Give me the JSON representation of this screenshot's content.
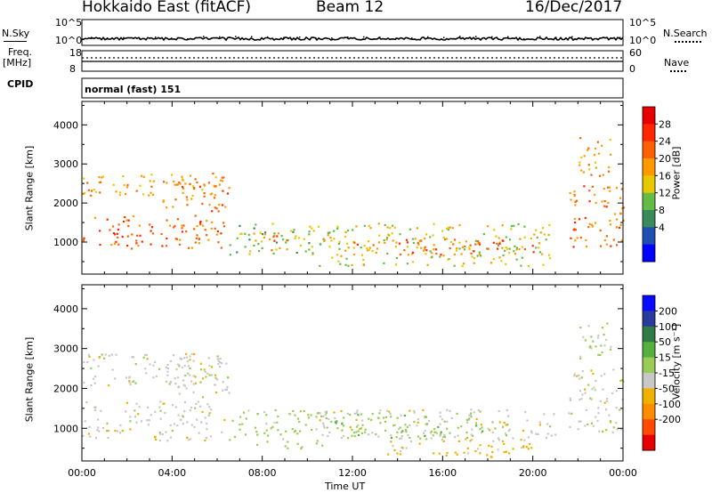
{
  "header": {
    "station": "Hokkaido East (fitACF)",
    "beam": "Beam 12",
    "date": "16/Dec/2017"
  },
  "noise_panel": {
    "left_label": "N.Sky",
    "right_label": "N.Search",
    "left_ticks": [
      "10^5",
      "10^0"
    ],
    "right_ticks": [
      "10^5",
      "10^0"
    ]
  },
  "freq_panel": {
    "left_label_1": "Freq.",
    "left_label_2": "[MHz]",
    "right_label": "Nave",
    "left_ticks": [
      "18",
      "8"
    ],
    "right_ticks": [
      "60",
      "0"
    ]
  },
  "cpid_panel": {
    "label": "CPID",
    "value": "normal (fast) 151"
  },
  "colors": {
    "power": [
      "#0000ff",
      "#1f4fb0",
      "#3b8a5c",
      "#66bb44",
      "#e8c800",
      "#ff9a00",
      "#ff6000",
      "#ff2600",
      "#e80000"
    ],
    "velocity": [
      "#e80000",
      "#ff4a00",
      "#ff8c00",
      "#f0b000",
      "#c8c8c8",
      "#99cc55",
      "#55b040",
      "#2f7a45",
      "#2a3a9c",
      "#0a0aff"
    ],
    "velocity_ground": "#c8c8c8"
  },
  "chart_data": [
    {
      "type": "heatmap",
      "name": "power",
      "ylabel": "Slant Range [km]",
      "xlabel": "",
      "colorbar_label": "Power [dB]",
      "colorbar_ticks": [
        "28",
        "24",
        "20",
        "16",
        "12",
        "8",
        "4"
      ],
      "x_ticks": [
        "00:00",
        "04:00",
        "08:00",
        "12:00",
        "16:00",
        "20:00",
        "00:00"
      ],
      "y_ticks": [
        "4000",
        "3000",
        "2000",
        "1000"
      ],
      "xlim_hours": [
        0,
        24
      ],
      "ylim_km": [
        180,
        4600
      ],
      "echo_regions": [
        {
          "t0": 0.0,
          "t1": 6.3,
          "r0": 850,
          "r1": 1700,
          "level": 26
        },
        {
          "t0": 0.0,
          "t1": 6.3,
          "r0": 2200,
          "r1": 2800,
          "level": 22
        },
        {
          "t0": 3.5,
          "t1": 6.5,
          "r0": 1800,
          "r1": 2600,
          "level": 25
        },
        {
          "t0": 6.5,
          "t1": 10.5,
          "r0": 700,
          "r1": 1500,
          "level": 14
        },
        {
          "t0": 7.5,
          "t1": 9.2,
          "r0": 800,
          "r1": 1300,
          "level": 25
        },
        {
          "t0": 10.5,
          "t1": 21.0,
          "r0": 400,
          "r1": 1500,
          "level": 18
        },
        {
          "t0": 12.0,
          "t1": 20.0,
          "r0": 700,
          "r1": 1100,
          "level": 26
        },
        {
          "t0": 21.5,
          "t1": 24.0,
          "r0": 900,
          "r1": 2500,
          "level": 25
        },
        {
          "t0": 22.0,
          "t1": 23.5,
          "r0": 2700,
          "r1": 3700,
          "level": 22
        }
      ]
    },
    {
      "type": "heatmap",
      "name": "velocity",
      "ylabel": "Slant Range [km]",
      "xlabel": "Time UT",
      "colorbar_label": "Velocity [m s⁻¹]",
      "colorbar_ticks": [
        "200",
        "100",
        "50",
        "15",
        "-15",
        "-50",
        "-100",
        "-200"
      ],
      "x_ticks": [
        "00:00",
        "04:00",
        "08:00",
        "12:00",
        "16:00",
        "20:00",
        "00:00"
      ],
      "y_ticks": [
        "4000",
        "3000",
        "2000",
        "1000"
      ],
      "xlim_hours": [
        0,
        24
      ],
      "ylim_km": [
        180,
        4600
      ],
      "echo_regions": [
        {
          "t0": 0.0,
          "t1": 6.3,
          "r0": 700,
          "r1": 1700,
          "vel": 0
        },
        {
          "t0": 0.0,
          "t1": 6.3,
          "r0": 2100,
          "r1": 2900,
          "vel": 0
        },
        {
          "t0": 3.5,
          "t1": 6.5,
          "r0": 1800,
          "r1": 2800,
          "vel": 0
        },
        {
          "t0": 6.5,
          "t1": 11.0,
          "r0": 500,
          "r1": 1500,
          "vel": 30
        },
        {
          "t0": 10.5,
          "t1": 21.0,
          "r0": 700,
          "r1": 1500,
          "vel": 0
        },
        {
          "t0": 11.0,
          "t1": 18.0,
          "r0": 750,
          "r1": 1400,
          "vel": 35
        },
        {
          "t0": 13.0,
          "t1": 20.0,
          "r0": 300,
          "r1": 700,
          "vel": -30
        },
        {
          "t0": 21.5,
          "t1": 24.0,
          "r0": 900,
          "r1": 2500,
          "vel": 0
        },
        {
          "t0": 22.0,
          "t1": 23.5,
          "r0": 2700,
          "r1": 3700,
          "vel": 25
        }
      ]
    }
  ]
}
